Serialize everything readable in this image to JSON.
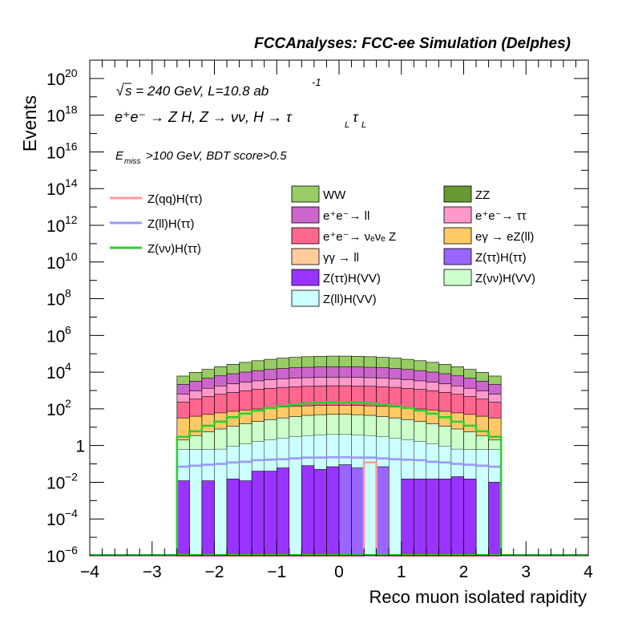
{
  "chart_data": {
    "type": "histogram",
    "title": "FCCAnalyses: FCC-ee Simulation (Delphes)",
    "xlabel": "Reco muon isolated rapidity",
    "ylabel": "Events",
    "xlim": [
      -4,
      4
    ],
    "ylim": [
      1e-06,
      1e+21
    ],
    "y_scale": "log",
    "x_ticks": [
      "−4",
      "−3",
      "−2",
      "−1",
      "0",
      "1",
      "2",
      "3",
      "4"
    ],
    "y_ticks": [
      {
        "base": "10",
        "exp": "−6",
        "value": 1e-06
      },
      {
        "base": "10",
        "exp": "−4",
        "value": 0.0001
      },
      {
        "base": "10",
        "exp": "−2",
        "value": 0.01
      },
      {
        "base": "1",
        "exp": "",
        "value": 1
      },
      {
        "base": "10",
        "exp": "2",
        "value": 100.0
      },
      {
        "base": "10",
        "exp": "4",
        "value": 10000.0
      },
      {
        "base": "10",
        "exp": "6",
        "value": 1000000.0
      },
      {
        "base": "10",
        "exp": "8",
        "value": 100000000.0
      },
      {
        "base": "10",
        "exp": "10",
        "value": 10000000000.0
      },
      {
        "base": "10",
        "exp": "12",
        "value": 1000000000000.0
      },
      {
        "base": "10",
        "exp": "14",
        "value": 100000000000000.0
      },
      {
        "base": "10",
        "exp": "16",
        "value": 1e+16
      },
      {
        "base": "10",
        "exp": "18",
        "value": 1e+18
      },
      {
        "base": "10",
        "exp": "20",
        "value": 1e+20
      }
    ],
    "annotations": {
      "line1": "s = 240 GeV, L=10.8 ab",
      "line1_exp": "-1",
      "line2": "e⁺e⁻ → Z H, Z → νν, H → τ",
      "line2_sub1": "L",
      "line2_tau": "τ",
      "line2_sub2": "L",
      "line3_pre": "E",
      "line3_sub": "miss",
      "line3_post": ">100 GeV, BDT score>0.5"
    },
    "bins": {
      "x_min": -2.6,
      "x_max": 2.6,
      "n": 26,
      "width": 0.2
    },
    "stacked_backgrounds": [
      {
        "name": "Z(νν)H(VV)",
        "color": "#ccffcc",
        "values": [
          2.0,
          3.5,
          5.5,
          8.0,
          11.5,
          15.5,
          20.5,
          26.0,
          32.0,
          38.0,
          44.0,
          48.0,
          50.0,
          50.0,
          48.0,
          44.0,
          38.0,
          32.0,
          26.0,
          20.5,
          15.5,
          11.5,
          8.0,
          5.5,
          3.5,
          2.0
        ]
      },
      {
        "name": "eγ → eZ(ll)",
        "color": "#ffc966",
        "values": [
          30,
          36,
          44,
          52,
          62,
          70,
          78,
          86,
          92,
          98,
          102,
          105,
          106,
          106,
          105,
          102,
          98,
          92,
          86,
          78,
          70,
          62,
          52,
          44,
          36,
          30
        ]
      },
      {
        "name": "e⁺e⁻→ νₑνₑ Z",
        "color": "#ff6690",
        "values": [
          200,
          300,
          420,
          560,
          720,
          880,
          1050,
          1200,
          1350,
          1460,
          1550,
          1610,
          1640,
          1640,
          1610,
          1550,
          1460,
          1350,
          1200,
          1050,
          880,
          720,
          560,
          420,
          300,
          200
        ]
      },
      {
        "name": "e⁺e⁻→ ττ",
        "color": "#ff99cc",
        "values": [
          400,
          600,
          850,
          1150,
          1500,
          1850,
          2200,
          2550,
          2850,
          3100,
          3300,
          3420,
          3480,
          3480,
          3420,
          3300,
          3100,
          2850,
          2550,
          2200,
          1850,
          1500,
          1150,
          850,
          600,
          400
        ]
      },
      {
        "name": "e⁺e⁻→ ll",
        "color": "#cc66cc",
        "values": [
          1500,
          2300,
          3300,
          4500,
          5900,
          7300,
          8800,
          10200,
          11500,
          12600,
          13400,
          13900,
          14100,
          14100,
          13900,
          13400,
          12600,
          11500,
          10200,
          8800,
          7300,
          5900,
          4500,
          3300,
          2300,
          1500
        ]
      },
      {
        "name": "WW",
        "color": "#99cc66",
        "values": [
          4000,
          6500,
          9500,
          13500,
          18500,
          24000,
          30000,
          36000,
          42000,
          47000,
          51000,
          54000,
          55500,
          55500,
          54000,
          51000,
          47000,
          42000,
          36000,
          30000,
          24000,
          18500,
          13500,
          9500,
          6500,
          4000
        ]
      }
    ],
    "aux_backgrounds": [
      {
        "name": "γγ → ll",
        "color": "#ffcc99"
      },
      {
        "name": "ZZ",
        "color": "#669933"
      },
      {
        "name": "Z(ττ)H(ττ)",
        "color": "#9966ff"
      },
      {
        "name": "Z(ττ)H(VV)",
        "color": "#9933ff"
      },
      {
        "name": "Z(ll)H(VV)",
        "color": "#ccffff"
      }
    ],
    "low_bars": {
      "name": "Z(ττ)H(VV)",
      "values": [
        0.012,
        0.0,
        0.012,
        0.0,
        0.015,
        0.012,
        0.04,
        0.04,
        0.06,
        0.0,
        0.08,
        0.05,
        0.07,
        0.09,
        0.06,
        0.0,
        0.07,
        0.0,
        0.015,
        0.015,
        0.015,
        0.015,
        0.02,
        0.015,
        0.0,
        0.01
      ]
    },
    "signals": [
      {
        "name": "Z(qq)H(ττ)",
        "color": "#ff9999",
        "values": [
          0,
          0,
          0,
          0,
          0,
          0,
          0,
          0,
          0,
          0,
          0,
          0,
          0,
          0,
          0,
          0.12,
          0,
          0,
          0,
          0,
          0,
          0,
          0,
          0,
          0,
          0
        ]
      },
      {
        "name": "Z(ll)H(ττ)",
        "color": "#9999ff",
        "values": [
          0.07,
          0.08,
          0.09,
          0.1,
          0.12,
          0.13,
          0.16,
          0.17,
          0.18,
          0.2,
          0.22,
          0.22,
          0.23,
          0.23,
          0.22,
          0.22,
          0.2,
          0.18,
          0.17,
          0.16,
          0.13,
          0.12,
          0.1,
          0.09,
          0.08,
          0.07
        ]
      },
      {
        "name": "Z(νν)H(ττ)",
        "color": "#33cc33",
        "values": [
          3.0,
          6.0,
          12.0,
          20.0,
          35.0,
          55.0,
          80.0,
          110.0,
          140.0,
          170.0,
          200.0,
          220.0,
          230.0,
          230.0,
          220.0,
          200.0,
          170.0,
          140.0,
          110.0,
          80.0,
          55.0,
          35.0,
          20.0,
          12.0,
          6.0,
          3.0
        ]
      }
    ],
    "legend_left": [
      {
        "name": "Z(qq)H(ττ)",
        "color": "#ff9999"
      },
      {
        "name": "Z(ll)H(ττ)",
        "color": "#9999ff"
      },
      {
        "name": "Z(νν)H(ττ)",
        "color": "#33cc33"
      }
    ],
    "legend_right": [
      {
        "name": "WW",
        "color": "#99cc66"
      },
      {
        "name": "ZZ",
        "color": "#669933"
      },
      {
        "name": "e⁺e⁻→ ll",
        "color": "#cc66cc"
      },
      {
        "name": "e⁺e⁻→ ττ",
        "color": "#ff99cc"
      },
      {
        "name": "e⁺e⁻→ νₑνₑ Z",
        "color": "#ff6690"
      },
      {
        "name": "eγ → eZ(ll)",
        "color": "#ffc966"
      },
      {
        "name": "γγ → ll",
        "color": "#ffcc99"
      },
      {
        "name": "Z(ττ)H(ττ)",
        "color": "#9966ff"
      },
      {
        "name": "Z(ττ)H(VV)",
        "color": "#9933ff"
      },
      {
        "name": "Z(νν)H(VV)",
        "color": "#ccffcc"
      },
      {
        "name": "Z(ll)H(VV)",
        "color": "#ccffff"
      }
    ]
  }
}
